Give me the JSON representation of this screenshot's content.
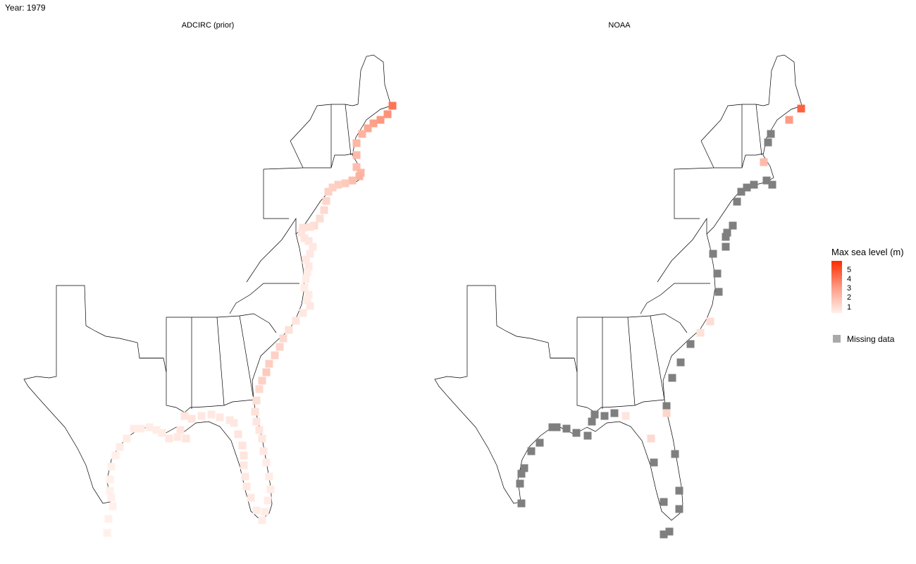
{
  "page": {
    "title": "Year: 1979"
  },
  "panels": [
    {
      "title": "ADCIRC (prior)"
    },
    {
      "title": "NOAA"
    }
  ],
  "legend": {
    "title": "Max sea level (m)",
    "ticks": [
      "5",
      "4",
      "3",
      "2",
      "1"
    ],
    "missing_label": "Missing data",
    "colors": {
      "high": "#ff2a00",
      "low": "#fff0eb",
      "missing": "#7f7f7f"
    }
  },
  "observations": {
    "adcirc_max_sea_level_m": [
      4.0,
      3.4,
      3.3,
      3.1,
      2.9,
      2.6,
      2.5,
      2.4,
      2.3,
      2.5,
      2.6,
      2.3,
      2.0,
      1.9,
      1.8,
      1.8,
      1.7,
      1.6,
      1.5,
      1.5,
      1.4,
      1.4,
      1.3,
      1.3,
      1.3,
      1.2,
      1.2,
      1.2,
      1.2,
      1.1,
      1.1,
      1.1,
      1.1,
      1.1,
      1.2,
      1.2,
      1.3,
      1.4,
      1.6,
      1.7,
      1.8,
      1.9,
      2.0,
      1.8,
      1.6,
      1.5,
      1.4,
      1.3,
      1.3,
      1.2,
      1.2,
      1.1,
      1.1,
      1.1,
      1.1,
      1.1,
      1.1,
      1.1,
      1.2,
      1.2,
      1.2,
      1.2,
      1.3,
      1.3,
      1.3,
      1.2,
      1.2,
      1.2,
      1.2,
      1.2,
      1.3,
      1.3,
      1.3,
      1.3,
      1.2,
      1.2,
      1.1,
      1.1,
      1.1,
      1.1,
      1.1,
      1.1,
      1.1,
      1.0,
      1.0,
      1.0,
      1.0,
      1.0,
      1.0,
      1.0,
      1.0,
      1.0
    ],
    "noaa_max_sea_level_m": [
      4.4,
      3.2,
      2.4,
      1.7,
      1.6,
      1.5,
      1.4,
      1.3
    ]
  }
}
